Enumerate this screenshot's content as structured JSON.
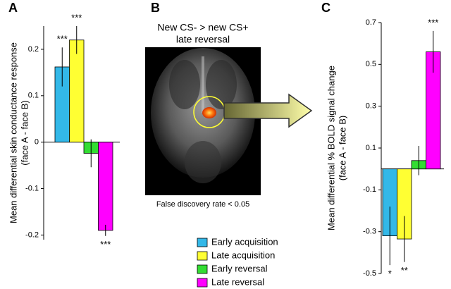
{
  "chart_data": [
    {
      "type": "bar",
      "panel_label": "A",
      "ylabel": [
        "Mean differential skin conductance response",
        "(face A - face B)"
      ],
      "ylim": [
        -0.21,
        0.25
      ],
      "yticks": [
        0.2,
        0.1,
        0,
        -0.1,
        -0.2
      ],
      "series": [
        {
          "name": "Early acquisition",
          "color": "#33b8e8",
          "values": [
            0.162
          ],
          "errors": [
            0.042
          ],
          "sig": [
            "***"
          ]
        },
        {
          "name": "Late acquisition",
          "color": "#ffff33",
          "values": [
            0.22
          ],
          "errors": [
            0.03
          ],
          "sig": [
            "***"
          ]
        },
        {
          "name": "Early reversal",
          "color": "#33dd33",
          "values": [
            -0.024
          ],
          "errors": [
            0.03
          ],
          "sig": [
            null
          ]
        },
        {
          "name": "Late reversal",
          "color": "#ff00ff",
          "values": [
            -0.19
          ],
          "errors": [
            0.012
          ],
          "sig": [
            "***"
          ]
        }
      ]
    },
    {
      "type": "bar",
      "panel_label": "C",
      "ylabel": [
        "Mean differential % BOLD signal change",
        "(face A - face B)"
      ],
      "ylim": [
        -0.5,
        0.7
      ],
      "yticks": [
        0.7,
        0.5,
        0.3,
        0.1,
        -0.1,
        -0.3,
        -0.5
      ],
      "series": [
        {
          "name": "Early acquisition",
          "color": "#33b8e8",
          "values": [
            -0.32
          ],
          "errors": [
            0.14
          ],
          "sig": [
            "*"
          ]
        },
        {
          "name": "Late acquisition",
          "color": "#ffff33",
          "values": [
            -0.335
          ],
          "errors": [
            0.11
          ],
          "sig": [
            "**"
          ]
        },
        {
          "name": "Early reversal",
          "color": "#33dd33",
          "values": [
            0.04
          ],
          "errors": [
            0.07
          ],
          "sig": [
            null
          ]
        },
        {
          "name": "Late reversal",
          "color": "#ff00ff",
          "values": [
            0.56
          ],
          "errors": [
            0.1
          ],
          "sig": [
            "***"
          ]
        }
      ]
    }
  ],
  "image_panel": {
    "label": "B",
    "title_lines": [
      "New CS- > new CS+",
      "late reversal"
    ],
    "caption": "False discovery rate < 0.05"
  }
}
